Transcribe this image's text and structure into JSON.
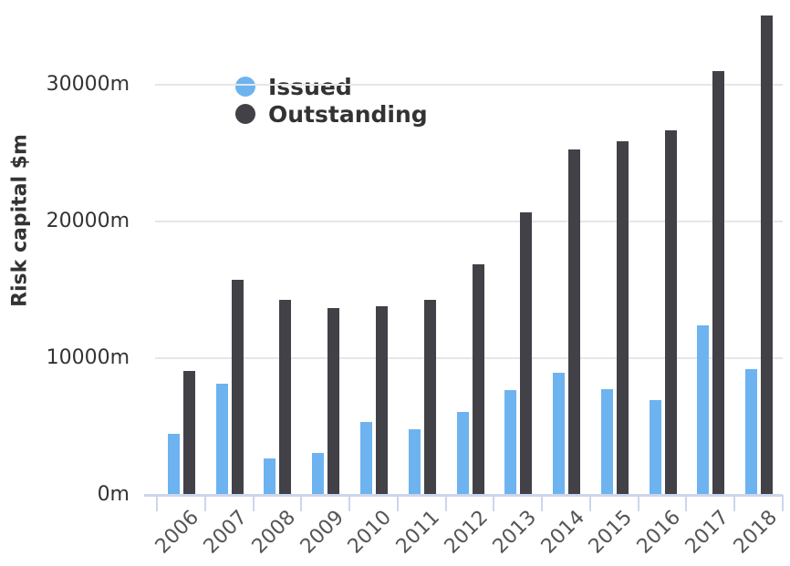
{
  "chart_data": {
    "type": "bar",
    "title": "",
    "ylabel": "Risk capital $m",
    "categories": [
      "2006",
      "2007",
      "2008",
      "2009",
      "2010",
      "2011",
      "2012",
      "2013",
      "2014",
      "2015",
      "2016",
      "2017",
      "2018"
    ],
    "series": [
      {
        "name": "Issued",
        "color": "#6db3f0",
        "values": [
          4500,
          8150,
          2650,
          3100,
          5350,
          4800,
          6100,
          7650,
          8950,
          7750,
          6950,
          12400,
          9200
        ]
      },
      {
        "name": "Outstanding",
        "color": "#414147",
        "values": [
          9100,
          15750,
          14250,
          13700,
          13800,
          14300,
          16850,
          20700,
          25250,
          25900,
          26700,
          31000,
          35100
        ]
      }
    ],
    "yticks": [
      {
        "value": 0,
        "label": "0m"
      },
      {
        "value": 10000,
        "label": "10000m"
      },
      {
        "value": 20000,
        "label": "20000m"
      },
      {
        "value": 30000,
        "label": "30000m"
      }
    ],
    "ylim": [
      0,
      35500
    ],
    "xlabel": "",
    "grid": true,
    "legend_position": "top-left-inside"
  },
  "colors": {
    "issued": "#6db3f0",
    "outstanding": "#414147",
    "gridline": "#e6e6e6",
    "axis_line": "#ccd6eb",
    "label_dark": "#333333",
    "label_gray": "#555555",
    "background": "#ffffff"
  }
}
